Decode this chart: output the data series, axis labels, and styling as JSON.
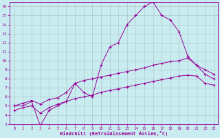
{
  "xlabel": "Windchill (Refroidissement éolien,°C)",
  "bg_color": "#c8ecf0",
  "grid_color": "#b0c8cc",
  "line_color": "#990099",
  "xlim": [
    -0.5,
    23.5
  ],
  "ylim": [
    3,
    16.5
  ],
  "xticks": [
    0,
    1,
    2,
    3,
    4,
    5,
    6,
    7,
    8,
    9,
    10,
    11,
    12,
    13,
    14,
    15,
    16,
    17,
    18,
    19,
    20,
    21,
    22,
    23
  ],
  "yticks": [
    3,
    4,
    5,
    6,
    7,
    8,
    9,
    10,
    11,
    12,
    13,
    14,
    15,
    16
  ],
  "line1_x": [
    0,
    1,
    2,
    3,
    4,
    5,
    6,
    7,
    8,
    9,
    10,
    11,
    12,
    13,
    14,
    15,
    16,
    17,
    18,
    19,
    20,
    21,
    22,
    23
  ],
  "line1_y": [
    5.0,
    5.0,
    5.5,
    2.8,
    4.5,
    5.0,
    5.5,
    7.5,
    6.5,
    6.0,
    9.5,
    11.5,
    12.0,
    14.0,
    15.0,
    16.0,
    16.5,
    15.0,
    14.5,
    13.2,
    10.5,
    9.5,
    9.0,
    8.5
  ],
  "line2_x": [
    0,
    1,
    2,
    3,
    4,
    5,
    6,
    7,
    8,
    9,
    10,
    11,
    12,
    13,
    14,
    15,
    16,
    17,
    18,
    19,
    20,
    21,
    22,
    23
  ],
  "line2_y": [
    5.0,
    5.3,
    5.6,
    5.2,
    5.7,
    5.9,
    6.5,
    7.5,
    7.8,
    8.0,
    8.2,
    8.4,
    8.6,
    8.8,
    9.0,
    9.2,
    9.5,
    9.7,
    9.9,
    10.0,
    10.3,
    9.5,
    8.5,
    8.0
  ],
  "line3_x": [
    0,
    1,
    2,
    3,
    4,
    5,
    6,
    7,
    8,
    9,
    10,
    11,
    12,
    13,
    14,
    15,
    16,
    17,
    18,
    19,
    20,
    21,
    22,
    23
  ],
  "line3_y": [
    4.5,
    4.8,
    5.0,
    4.2,
    4.8,
    5.2,
    5.5,
    5.8,
    6.0,
    6.2,
    6.5,
    6.7,
    6.9,
    7.1,
    7.3,
    7.5,
    7.7,
    7.9,
    8.1,
    8.3,
    8.4,
    8.3,
    7.5,
    7.3
  ]
}
